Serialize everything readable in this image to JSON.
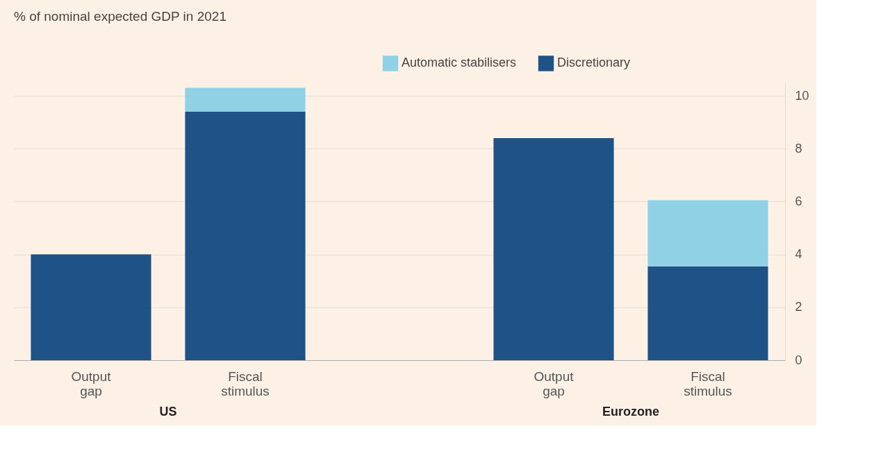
{
  "chart_data": {
    "type": "bar",
    "title": "% of nominal expected GDP in 2021",
    "categories": [
      "Output gap",
      "Fiscal stimulus",
      null,
      "Output gap",
      "Fiscal stimulus"
    ],
    "stacked": true,
    "series": [
      {
        "name": "Discretionary",
        "color": "#1f5287",
        "values": [
          4.0,
          9.4,
          null,
          8.4,
          3.55
        ]
      },
      {
        "name": "Automatic stabilisers",
        "color": "#90d1e6",
        "values": [
          null,
          0.9,
          null,
          null,
          2.5
        ]
      }
    ],
    "ylim": [
      0,
      10.5
    ],
    "yticks": [
      0,
      2,
      4,
      6,
      8,
      10
    ],
    "grid": "y",
    "legend": "top right",
    "annotations": [
      "US",
      "Eurozone"
    ]
  }
}
